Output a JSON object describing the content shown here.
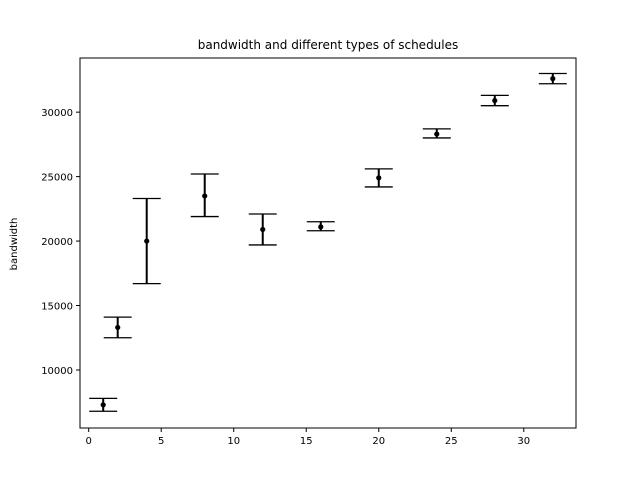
{
  "chart_data": {
    "type": "scatter",
    "title": "bandwidth and different types of schedules",
    "xlabel": "",
    "ylabel": "bandwidth",
    "xlim": [
      -0.6,
      33.6
    ],
    "ylim": [
      5500,
      34200
    ],
    "xticks": [
      0,
      5,
      10,
      15,
      20,
      25,
      30
    ],
    "yticks": [
      10000,
      15000,
      20000,
      25000,
      30000
    ],
    "grid": false,
    "series": [
      {
        "marker_color": "#000000",
        "points": [
          {
            "x": 1,
            "y": 7300,
            "yerr_low": 6800,
            "yerr_high": 7800
          },
          {
            "x": 2,
            "y": 13300,
            "yerr_low": 12500,
            "yerr_high": 14100
          },
          {
            "x": 4,
            "y": 20000,
            "yerr_low": 16700,
            "yerr_high": 23300
          },
          {
            "x": 8,
            "y": 23500,
            "yerr_low": 21900,
            "yerr_high": 25200
          },
          {
            "x": 12,
            "y": 20900,
            "yerr_low": 19700,
            "yerr_high": 22100
          },
          {
            "x": 16,
            "y": 21100,
            "yerr_low": 20800,
            "yerr_high": 21500
          },
          {
            "x": 20,
            "y": 24900,
            "yerr_low": 24200,
            "yerr_high": 25600
          },
          {
            "x": 24,
            "y": 28300,
            "yerr_low": 28000,
            "yerr_high": 28700
          },
          {
            "x": 28,
            "y": 30900,
            "yerr_low": 30500,
            "yerr_high": 31300
          },
          {
            "x": 32,
            "y": 32600,
            "yerr_low": 32200,
            "yerr_high": 33000
          }
        ]
      }
    ]
  }
}
